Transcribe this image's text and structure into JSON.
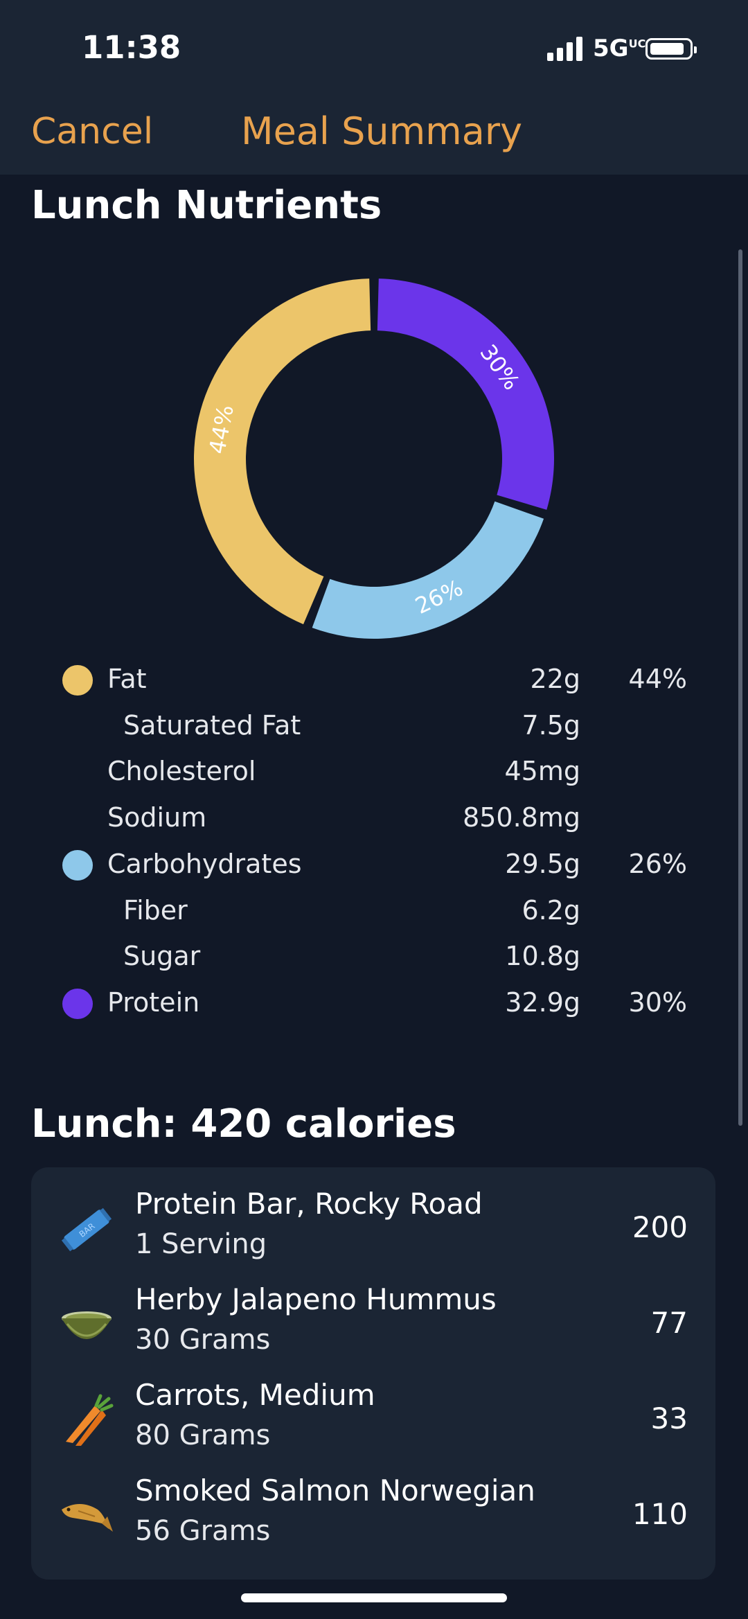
{
  "status_bar": {
    "time": "11:38",
    "network": "5G",
    "network_suffix": "UC"
  },
  "nav": {
    "cancel_label": "Cancel",
    "title": "Meal Summary"
  },
  "nutrients_title": "Lunch Nutrients",
  "colors": {
    "fat": "#ecc56a",
    "carbs": "#8ec8ea",
    "protein": "#6b35ea",
    "accent": "#e8a24e"
  },
  "chart_data": {
    "type": "pie",
    "variant": "donut",
    "slices": [
      {
        "name": "Protein",
        "value": 30,
        "label": "30%",
        "color": "#6b35ea"
      },
      {
        "name": "Carbohydrates",
        "value": 26,
        "label": "26%",
        "color": "#8ec8ea"
      },
      {
        "name": "Fat",
        "value": 44,
        "label": "44%",
        "color": "#ecc56a"
      }
    ]
  },
  "legend": [
    {
      "label": "Fat",
      "amount": "22g",
      "pct": "44%",
      "dot": "fat",
      "indent": false
    },
    {
      "label": "Saturated Fat",
      "amount": "7.5g",
      "pct": "",
      "dot": "",
      "indent": true
    },
    {
      "label": "Cholesterol",
      "amount": "45mg",
      "pct": "",
      "dot": "",
      "indent": false
    },
    {
      "label": "Sodium",
      "amount": "850.8mg",
      "pct": "",
      "dot": "",
      "indent": false
    },
    {
      "label": "Carbohydrates",
      "amount": "29.5g",
      "pct": "26%",
      "dot": "carbs",
      "indent": false
    },
    {
      "label": "Fiber",
      "amount": "6.2g",
      "pct": "",
      "dot": "",
      "indent": true
    },
    {
      "label": "Sugar",
      "amount": "10.8g",
      "pct": "",
      "dot": "",
      "indent": true
    },
    {
      "label": "Protein",
      "amount": "32.9g",
      "pct": "30%",
      "dot": "protein",
      "indent": false
    }
  ],
  "meal": {
    "title": "Lunch: 420 calories",
    "items": [
      {
        "name": "Protein Bar, Rocky Road",
        "qty": "1 Serving",
        "calories": "200",
        "icon": "protein-bar-icon"
      },
      {
        "name": "Herby Jalapeno Hummus",
        "qty": "30 Grams",
        "calories": "77",
        "icon": "bowl-icon"
      },
      {
        "name": "Carrots, Medium",
        "qty": "80 Grams",
        "calories": "33",
        "icon": "carrot-icon"
      },
      {
        "name": "Smoked Salmon Norwegian",
        "qty": "56 Grams",
        "calories": "110",
        "icon": "fish-icon"
      }
    ]
  }
}
